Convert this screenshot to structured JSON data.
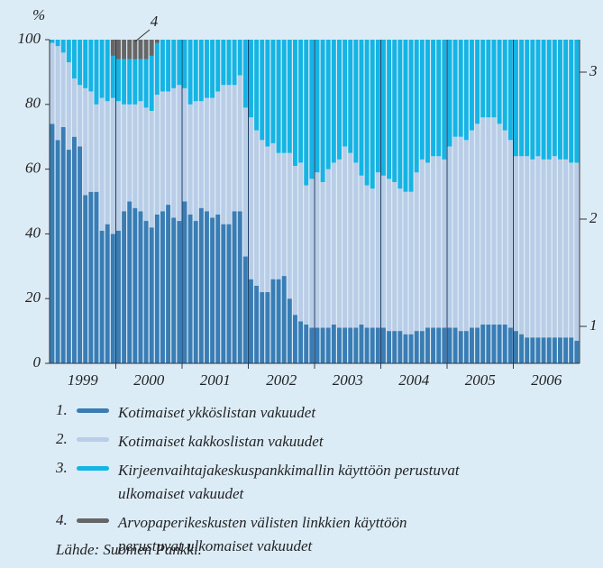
{
  "chart_data": {
    "type": "stacked_bar",
    "ylabel": "%",
    "ylim": [
      0,
      100
    ],
    "yticks": [
      0,
      20,
      40,
      60,
      80,
      100
    ],
    "categories": [
      null,
      null,
      null,
      null,
      null,
      null,
      "1999",
      null,
      null,
      null,
      null,
      null,
      null,
      null,
      null,
      null,
      null,
      null,
      "2000",
      null,
      null,
      null,
      null,
      null,
      null,
      null,
      null,
      null,
      null,
      null,
      "2001",
      null,
      null,
      null,
      null,
      null,
      null,
      null,
      null,
      null,
      null,
      null,
      "2002",
      null,
      null,
      null,
      null,
      null,
      null,
      null,
      null,
      null,
      null,
      null,
      "2003",
      null,
      null,
      null,
      null,
      null,
      null,
      null,
      null,
      null,
      null,
      null,
      "2004",
      null,
      null,
      null,
      null,
      null,
      null,
      null,
      null,
      null,
      null,
      null,
      "2005",
      null,
      null,
      null,
      null,
      null,
      null,
      null,
      null,
      null,
      null,
      null,
      "2006",
      null,
      null,
      null,
      null,
      null
    ],
    "legend_numbers": [
      "1.",
      "2.",
      "3.",
      "4."
    ],
    "series": [
      {
        "name": "Kotimaiset ykköslistan vakuudet",
        "color": "#3a7db5",
        "values": [
          74,
          69,
          73,
          66,
          70,
          67,
          52,
          53,
          53,
          41,
          43,
          40,
          41,
          47,
          50,
          48,
          47,
          44,
          42,
          46,
          47,
          49,
          45,
          44,
          50,
          46,
          44,
          48,
          47,
          45,
          46,
          43,
          43,
          47,
          47,
          33,
          26,
          24,
          22,
          22,
          26,
          26,
          27,
          20,
          15,
          13,
          12,
          11,
          11,
          11,
          11,
          12,
          11,
          11,
          11,
          11,
          12,
          11,
          11,
          11,
          11,
          10,
          10,
          10,
          9,
          9,
          10,
          10,
          11,
          11,
          11,
          11,
          11,
          11,
          10,
          10,
          11,
          11,
          12,
          12,
          12,
          12,
          12,
          11,
          10,
          9,
          8,
          8,
          8,
          8,
          8,
          8,
          8,
          8,
          8,
          7
        ]
      },
      {
        "name": "Kotimaiset kakkoslistan vakuudet",
        "color": "#b9cde6",
        "values": [
          25,
          29,
          23,
          27,
          18,
          19,
          33,
          31,
          27,
          41,
          38,
          42,
          40,
          33,
          30,
          32,
          34,
          35,
          36,
          37,
          37,
          35,
          40,
          42,
          35,
          34,
          37,
          33,
          35,
          37,
          38,
          43,
          43,
          39,
          42,
          46,
          50,
          48,
          47,
          45,
          42,
          39,
          38,
          45,
          46,
          49,
          43,
          46,
          48,
          45,
          49,
          50,
          52,
          56,
          54,
          51,
          46,
          44,
          43,
          48,
          47,
          47,
          46,
          44,
          44,
          44,
          49,
          53,
          51,
          53,
          53,
          52,
          56,
          59,
          60,
          59,
          61,
          63,
          64,
          64,
          64,
          62,
          60,
          58,
          54,
          55,
          56,
          55,
          56,
          55,
          55,
          56,
          55,
          55,
          54,
          55
        ]
      },
      {
        "name": "Kirjeenvaihtajakeskuspankkimallin käyttöön perustuvat ulkomaiset vakuudet",
        "color": "#14b4e4",
        "values": [
          1,
          2,
          4,
          7,
          12,
          14,
          15,
          16,
          20,
          18,
          19,
          13,
          13,
          14,
          14,
          14,
          13,
          15,
          17,
          16,
          16,
          16,
          15,
          14,
          15,
          20,
          19,
          19,
          18,
          18,
          16,
          14,
          14,
          14,
          11,
          21,
          24,
          28,
          31,
          33,
          32,
          35,
          35,
          35,
          39,
          38,
          45,
          43,
          41,
          44,
          40,
          38,
          37,
          33,
          35,
          38,
          42,
          45,
          46,
          41,
          42,
          43,
          44,
          46,
          47,
          47,
          41,
          37,
          38,
          36,
          36,
          37,
          33,
          30,
          30,
          31,
          28,
          26,
          24,
          24,
          24,
          26,
          28,
          31,
          36,
          36,
          36,
          37,
          36,
          37,
          37,
          36,
          37,
          37,
          38,
          38
        ]
      },
      {
        "name": "Arvopaperikeskusten välisten linkkien käyttöön perustuvat ulkomaiset vakuudet",
        "color": "#666666",
        "values": [
          0,
          0,
          0,
          0,
          0,
          0,
          0,
          0,
          0,
          0,
          0,
          5,
          6,
          6,
          6,
          6,
          6,
          6,
          5,
          1,
          0,
          0,
          0,
          0,
          0,
          0,
          0,
          0,
          0,
          0,
          0,
          0,
          0,
          0,
          0,
          0,
          0,
          0,
          0,
          0,
          0,
          0,
          0,
          0,
          0,
          0,
          0,
          0,
          0,
          0,
          0,
          0,
          0,
          0,
          0,
          0,
          0,
          0,
          0,
          0,
          0,
          0,
          0,
          0,
          0,
          0,
          0,
          0,
          0,
          0,
          0,
          0,
          0,
          0,
          0,
          0,
          0,
          0,
          0,
          0,
          0,
          0,
          0,
          0,
          0,
          0,
          0,
          0,
          0,
          0,
          0,
          0,
          0,
          0,
          0,
          0
        ]
      }
    ],
    "annotations": [
      "4",
      "1",
      "2",
      "3"
    ],
    "source": "Lähde: Suomen Pankki."
  }
}
